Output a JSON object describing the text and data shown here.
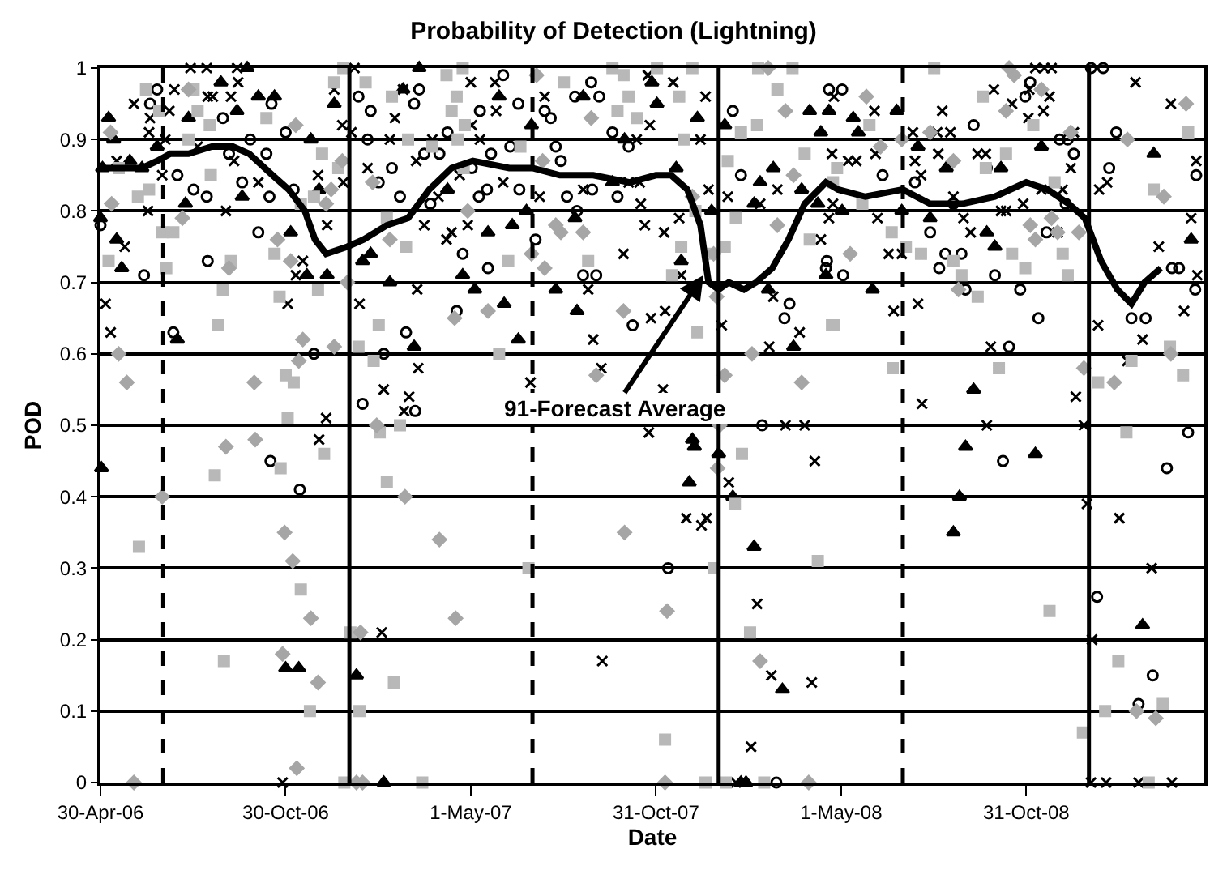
{
  "chart_data": {
    "type": "scatter",
    "title": "Probability of Detection (Lightning)",
    "xlabel": "Date",
    "ylabel": "POD",
    "xlim": [
      "2006-04-30",
      "2009-04-25"
    ],
    "ylim": [
      0,
      1
    ],
    "xticks": [
      {
        "value": "2006-04-30",
        "label": "30-Apr-06"
      },
      {
        "value": "2006-10-30",
        "label": "30-Oct-06"
      },
      {
        "value": "2007-05-01",
        "label": "1-May-07"
      },
      {
        "value": "2007-10-31",
        "label": "31-Oct-07"
      },
      {
        "value": "2008-05-01",
        "label": "1-May-08"
      },
      {
        "value": "2008-10-31",
        "label": "31-Oct-08"
      }
    ],
    "yticks": [
      0,
      0.1,
      0.2,
      0.3,
      0.4,
      0.5,
      0.6,
      0.7,
      0.8,
      0.9,
      1
    ],
    "grid": "y",
    "ref_lines": [
      {
        "axis": "x",
        "value": "2006-07-01",
        "line_style": "dashed",
        "color": "#000000"
      },
      {
        "axis": "x",
        "value": "2007-01-01",
        "line_style": "solid",
        "color": "#000000"
      },
      {
        "axis": "x",
        "value": "2007-07-01",
        "line_style": "dashed",
        "color": "#000000"
      },
      {
        "axis": "x",
        "value": "2008-01-01",
        "line_style": "solid",
        "color": "#000000"
      },
      {
        "axis": "x",
        "value": "2008-07-01",
        "line_style": "dashed",
        "color": "#000000"
      },
      {
        "axis": "x",
        "value": "2009-01-01",
        "line_style": "solid",
        "color": "#000000"
      }
    ],
    "annotations": [
      {
        "text": "91-Forecast Average",
        "x": "2007-12-17",
        "y": 0.71
      }
    ],
    "series": [
      {
        "marker": "triangle",
        "color": "#000000",
        "x": [
          "2006-05-08",
          "2006-05-13",
          "2006-05-02",
          "2006-05-29",
          "2006-06-10",
          "2006-06-25",
          "2006-04-30",
          "2006-05-16",
          "2006-05-21",
          "2006-07-15",
          "2006-07-26",
          "2006-08-27",
          "2006-09-12",
          "2006-09-22",
          "2006-10-03",
          "2006-10-19",
          "2006-09-17",
          "2006-07-23",
          "2006-11-04",
          "2006-11-20",
          "2006-12-10",
          "2006-11-24",
          "2006-12-17",
          "2006-12-02",
          "2007-01-14",
          "2007-01-22",
          "2007-02-10",
          "2007-02-23",
          "2007-03-06",
          "2007-03-11",
          "2007-04-08",
          "2007-04-23",
          "2007-05-29",
          "2007-06-30",
          "2007-06-25",
          "2007-05-18",
          "2007-06-11",
          "2007-05-05",
          "2007-06-03",
          "2007-07-24",
          "2007-08-14",
          "2007-06-17",
          "2007-08-12",
          "2007-08-20",
          "2007-09-18",
          "2007-09-30",
          "2007-10-27",
          "2007-11-01",
          "2007-11-20",
          "2007-12-11",
          "2007-12-25",
          "2007-11-25",
          "2008-01-07",
          "2008-02-11",
          "2008-02-05",
          "2008-02-24",
          "2008-03-23",
          "2008-03-31",
          "2008-04-11",
          "2008-04-08",
          "2007-12-06",
          "2008-02-19",
          "2008-03-15",
          "2008-04-19",
          "2008-05-13",
          "2008-05-18",
          "2008-06-25",
          "2008-06-30",
          "2008-07-16",
          "2008-05-02",
          "2008-06-01",
          "2008-04-16",
          "2008-07-28",
          "2008-08-13",
          "2008-09-22",
          "2008-09-30",
          "2008-10-06",
          "2008-11-15",
          "2009-03-06",
          "2009-04-12",
          "2008-09-09",
          "2008-09-01",
          "2008-11-09",
          "2008-08-26",
          "2008-08-20",
          "2009-02-23",
          "2006-05-01",
          "2006-10-30",
          "2006-11-12",
          "2007-01-08",
          "2007-02-04",
          "2007-12-08",
          "2008-01-01",
          "2007-12-03",
          "2008-01-15",
          "2008-02-05",
          "2008-03-04",
          "2008-01-23",
          "2008-01-28"
        ],
        "values": [
          0.93,
          0.9,
          0.86,
          0.87,
          0.86,
          0.89,
          0.79,
          0.76,
          0.72,
          0.62,
          0.93,
          0.98,
          0.94,
          1.0,
          0.96,
          0.96,
          0.82,
          0.81,
          0.77,
          0.71,
          0.71,
          0.9,
          0.95,
          0.83,
          0.73,
          0.74,
          0.7,
          0.97,
          0.61,
          1.0,
          0.83,
          0.71,
          0.96,
          0.92,
          0.8,
          0.77,
          0.78,
          0.69,
          0.67,
          0.69,
          0.66,
          0.62,
          0.79,
          0.96,
          0.84,
          0.9,
          0.98,
          0.95,
          0.86,
          0.93,
          0.8,
          0.73,
          0.92,
          0.84,
          0.81,
          0.86,
          0.83,
          0.94,
          0.91,
          0.81,
          0.48,
          0.69,
          0.61,
          0.94,
          0.93,
          0.91,
          0.94,
          0.8,
          0.89,
          0.8,
          0.69,
          0.71,
          0.79,
          0.86,
          0.77,
          0.75,
          0.86,
          0.89,
          0.88,
          0.76,
          0.55,
          0.47,
          0.46,
          0.4,
          0.35,
          0.22,
          0.44,
          0.16,
          0.16,
          0.15,
          0,
          0.47,
          0.46,
          0.42,
          0.4,
          0.33,
          0.13,
          0,
          0
        ]
      },
      {
        "marker": "circle",
        "color": "#000000",
        "x": [
          "2006-06-25",
          "2006-06-18",
          "2006-10-16",
          "2006-08-29",
          "2006-09-25",
          "2006-10-30",
          "2006-07-15",
          "2006-07-31",
          "2006-08-13",
          "2006-09-04",
          "2006-09-17",
          "2006-10-11",
          "2006-10-14",
          "2006-11-07",
          "2006-10-03",
          "2006-04-30",
          "2006-06-12",
          "2006-08-14",
          "2006-07-11",
          "2006-11-27",
          "2007-01-10",
          "2007-01-22",
          "2007-01-19",
          "2007-02-12",
          "2007-01-30",
          "2007-02-20",
          "2007-03-11",
          "2007-03-06",
          "2007-03-16",
          "2007-04-08",
          "2007-03-31",
          "2007-03-22",
          "2007-04-23",
          "2007-04-17",
          "2007-02-04",
          "2007-02-26",
          "2007-03-07",
          "2007-01-14",
          "2006-10-15",
          "2006-11-13",
          "2007-06-02",
          "2007-08-28",
          "2007-09-05",
          "2007-08-12",
          "2007-05-10",
          "2007-06-17",
          "2007-07-13",
          "2007-07-19",
          "2007-07-24",
          "2007-09-18",
          "2007-10-04",
          "2007-05-21",
          "2007-06-09",
          "2007-05-02",
          "2007-05-17",
          "2007-05-09",
          "2007-06-18",
          "2007-07-29",
          "2007-08-04",
          "2007-09-23",
          "2007-08-29",
          "2007-07-04",
          "2007-05-18",
          "2007-08-20",
          "2007-09-02",
          "2007-08-14",
          "2007-10-08",
          "2008-01-15",
          "2008-01-23",
          "2008-04-16",
          "2008-03-11",
          "2008-03-06",
          "2008-02-13",
          "2007-11-12",
          "2008-02-27",
          "2008-04-19",
          "2008-05-02",
          "2008-06-11",
          "2008-07-13",
          "2008-05-03",
          "2008-04-17",
          "2008-07-28",
          "2008-08-12",
          "2008-08-28",
          "2008-08-06",
          "2008-08-20",
          "2008-09-09",
          "2008-09-22",
          "2008-11-04",
          "2008-10-30",
          "2008-09-30",
          "2008-09-01",
          "2008-10-25",
          "2008-11-20",
          "2008-12-03",
          "2008-12-11",
          "2008-12-17",
          "2008-12-09",
          "2009-01-03",
          "2009-01-15",
          "2009-01-28",
          "2009-01-21",
          "2009-03-31",
          "2009-03-24",
          "2009-04-17",
          "2009-04-16",
          "2009-02-12",
          "2009-02-26",
          "2008-10-14",
          "2008-11-12",
          "2009-04-09",
          "2008-10-08",
          "2009-03-19",
          "2009-01-09",
          "2009-03-05",
          "2009-02-19"
        ],
        "values": [
          0.97,
          0.95,
          0.95,
          0.93,
          0.9,
          0.91,
          0.85,
          0.83,
          0.82,
          0.88,
          0.84,
          0.88,
          0.82,
          0.83,
          0.77,
          0.78,
          0.71,
          0.73,
          0.63,
          0.6,
          0.96,
          0.94,
          0.9,
          0.86,
          0.84,
          0.82,
          0.97,
          0.95,
          0.88,
          0.91,
          0.88,
          0.81,
          0.74,
          0.66,
          0.6,
          0.63,
          0.52,
          0.53,
          0.45,
          0.41,
          0.99,
          0.98,
          0.96,
          0.96,
          0.94,
          0.95,
          0.94,
          0.93,
          0.89,
          0.91,
          0.89,
          0.88,
          0.89,
          0.86,
          0.83,
          0.82,
          0.83,
          0.87,
          0.82,
          0.82,
          0.83,
          0.76,
          0.72,
          0.71,
          0.71,
          0.8,
          0.64,
          0.94,
          0.85,
          0.72,
          0.67,
          0.65,
          0.5,
          0.3,
          0,
          0.97,
          0.97,
          0.85,
          0.84,
          0.71,
          0.73,
          0.77,
          0.74,
          0.74,
          0.72,
          0.81,
          0.92,
          0.86,
          0.98,
          0.96,
          0.71,
          0.69,
          0.69,
          0.77,
          0.9,
          0.9,
          0.88,
          0.81,
          1.0,
          1.0,
          0.91,
          0.86,
          0.72,
          0.72,
          0.85,
          0.69,
          0.65,
          0.65,
          0.61,
          0.65,
          0.49,
          0.45,
          0.44,
          0.26,
          0.15,
          0.11
        ]
      },
      {
        "marker": "cross",
        "color": "#000000",
        "x": [
          "2006-06-02",
          "2006-06-18",
          "2006-07-07",
          "2006-07-12",
          "2006-07-28",
          "2006-08-13",
          "2006-08-14",
          "2006-09-12",
          "2006-09-13",
          "2006-09-06",
          "2006-08-19",
          "2006-08-04",
          "2006-07-03",
          "2006-06-17",
          "2006-05-16",
          "2006-06-30",
          "2006-06-16",
          "2006-05-24",
          "2006-09-01",
          "2006-09-09",
          "2006-10-03",
          "2006-12-01",
          "2006-12-26",
          "2006-12-10",
          "2006-12-17",
          "2006-12-25",
          "2007-01-03",
          "2007-01-06",
          "2006-11-16",
          "2006-11-09",
          "2006-05-05",
          "2006-05-10",
          "2006-11-01",
          "2006-12-09",
          "2006-12-02",
          "2007-01-19",
          "2007-01-11",
          "2007-02-23",
          "2007-02-15",
          "2007-02-10",
          "2007-03-08",
          "2007-03-24",
          "2007-03-16",
          "2007-03-30",
          "2007-04-12",
          "2007-04-07",
          "2007-04-20",
          "2007-03-09",
          "2007-03-10",
          "2007-02-04",
          "2007-02-24",
          "2007-03-01",
          "2006-10-27",
          "2007-02-02",
          "2007-05-01",
          "2007-05-25",
          "2007-05-26",
          "2007-05-02",
          "2007-05-10",
          "2007-06-02",
          "2007-04-28",
          "2007-07-08",
          "2007-07-13",
          "2007-08-20",
          "2007-10-04",
          "2007-10-15",
          "2007-10-23",
          "2007-11-17",
          "2007-10-25",
          "2007-10-12",
          "2007-12-19",
          "2007-12-14",
          "2007-12-22",
          "2008-01-10",
          "2008-04-22",
          "2008-04-23",
          "2008-04-11",
          "2008-02-28",
          "2008-02-11",
          "2007-10-16",
          "2007-10-20",
          "2007-11-08",
          "2007-11-23",
          "2007-09-29",
          "2007-11-25",
          "2008-02-24",
          "2008-03-21",
          "2008-02-20",
          "2008-03-26",
          "2008-03-07",
          "2008-01-04",
          "2007-08-25",
          "2007-11-09",
          "2007-10-26",
          "2007-08-30",
          "2007-09-07",
          "2007-06-29",
          "2007-11-07",
          "2007-10-24",
          "2008-04-05",
          "2008-01-11",
          "2007-11-30",
          "2007-12-15",
          "2007-12-20",
          "2008-02-08",
          "2007-09-08",
          "2008-02-22",
          "2008-04-02",
          "2008-02-02",
          "2008-01-18",
          "2008-04-24",
          "2008-06-03",
          "2008-05-08",
          "2008-05-16",
          "2008-06-04",
          "2008-04-19",
          "2008-06-06",
          "2008-07-11",
          "2008-08-09",
          "2008-08-04",
          "2008-08-17",
          "2008-08-05",
          "2008-07-13",
          "2008-07-19",
          "2008-08-20",
          "2008-08-30",
          "2008-09-06",
          "2008-09-13",
          "2008-09-21",
          "2008-10-06",
          "2008-10-11",
          "2008-10-28",
          "2008-09-29",
          "2008-10-17",
          "2008-11-02",
          "2008-11-17",
          "2008-11-23",
          "2008-11-03",
          "2008-11-09",
          "2008-11-25",
          "2008-11-18",
          "2008-12-01",
          "2008-12-06",
          "2008-12-14",
          "2008-12-17",
          "2009-01-11",
          "2009-01-19",
          "2008-11-15",
          "2008-06-17",
          "2008-06-30",
          "2008-06-22",
          "2008-07-16",
          "2008-09-26",
          "2009-01-10",
          "2009-02-23",
          "2009-04-05",
          "2009-02-08",
          "2009-02-16",
          "2009-03-23",
          "2009-04-17",
          "2009-04-12",
          "2009-03-11",
          "2009-04-18",
          "2008-07-20",
          "2008-09-22",
          "2008-12-19",
          "2008-12-27",
          "2008-12-30",
          "2009-01-31",
          "2009-03-04",
          "2009-01-04",
          "2009-01-03",
          "2009-01-18",
          "2009-02-19",
          "2009-03-24"
        ],
        "values": [
          0.95,
          0.93,
          0.94,
          0.97,
          1.0,
          1.0,
          0.96,
          1.0,
          0.98,
          0.96,
          0.96,
          0.89,
          0.9,
          0.91,
          0.87,
          0.85,
          0.8,
          0.75,
          0.8,
          0.87,
          0.84,
          0.85,
          0.84,
          0.78,
          0.97,
          0.92,
          0.91,
          1.0,
          0.73,
          0.71,
          0.67,
          0.63,
          0.67,
          0.51,
          0.48,
          0.86,
          0.67,
          0.97,
          0.93,
          0.9,
          0.87,
          0.9,
          0.78,
          0.82,
          0.77,
          0.76,
          0.85,
          0.69,
          0.58,
          0.55,
          0.52,
          0.54,
          0,
          0.21,
          0.98,
          0.98,
          0.94,
          0.92,
          0.9,
          0.84,
          0.78,
          0.82,
          0.96,
          0.83,
          0.84,
          0.84,
          0.99,
          0.98,
          0.92,
          0.9,
          0.96,
          0.9,
          0.83,
          0.82,
          0.88,
          0.81,
          0.76,
          0.83,
          0.81,
          0.81,
          0.78,
          0.77,
          0.79,
          0.74,
          0.71,
          0.68,
          0.63,
          0.61,
          0.5,
          0.5,
          0.64,
          0.69,
          0.66,
          0.65,
          0.62,
          0.58,
          0.56,
          0.55,
          0.49,
          0.45,
          0.42,
          0.37,
          0.36,
          0.37,
          0.25,
          0.17,
          0.15,
          0.14,
          0.05,
          0,
          0.96,
          0.94,
          0.87,
          0.87,
          0.88,
          0.79,
          0.79,
          0.91,
          0.94,
          0.91,
          0.91,
          0.88,
          0.87,
          0.85,
          0.82,
          0.79,
          0.77,
          0.88,
          0.88,
          0.8,
          0.8,
          0.81,
          0.97,
          0.95,
          0.93,
          0.94,
          0.96,
          0.97,
          1.0,
          1.0,
          1.0,
          0.77,
          0.83,
          0.86,
          0.91,
          0.83,
          0.84,
          0.83,
          0.74,
          0.74,
          0.66,
          0.67,
          0.61,
          0.64,
          0.62,
          0.66,
          0.59,
          0.98,
          0.95,
          0.87,
          0.79,
          0.75,
          0.71,
          0.53,
          0.5,
          0.54,
          0.5,
          0.39,
          0.37,
          0.3,
          0.2,
          0,
          0,
          0,
          0
        ]
      },
      {
        "marker": "square",
        "color": "#b8b8b8",
        "x": [
          "2006-06-14",
          "2006-06-27",
          "2006-07-26",
          "2006-08-16",
          "2006-08-04",
          "2006-07-31",
          "2006-10-11",
          "2006-06-17",
          "2006-06-06",
          "2006-05-18",
          "2006-08-17",
          "2006-05-08",
          "2006-06-30",
          "2006-07-11",
          "2006-07-04",
          "2006-09-06",
          "2006-10-19",
          "2006-11-27",
          "2006-11-14",
          "2006-12-05",
          "2006-12-21",
          "2006-12-17",
          "2006-12-26",
          "2007-01-17",
          "2006-12-01",
          "2006-08-29",
          "2006-08-24",
          "2006-10-24",
          "2006-10-30",
          "2006-11-07",
          "2006-11-01",
          "2007-01-10",
          "2007-01-25",
          "2007-01-30",
          "2007-01-31",
          "2007-02-12",
          "2007-02-28",
          "2007-02-26",
          "2007-02-07",
          "2007-02-20",
          "2007-03-24",
          "2007-04-07",
          "2007-04-17",
          "2007-04-12",
          "2007-04-18",
          "2007-04-24",
          "2006-08-21",
          "2006-10-25",
          "2006-12-07",
          "2006-06-07",
          "2006-08-30",
          "2006-11-14",
          "2006-11-23",
          "2007-01-02",
          "2007-01-11",
          "2006-12-27",
          "2007-02-07",
          "2007-02-14",
          "2007-03-14",
          "2007-04-23",
          "2007-04-25",
          "2007-06-19",
          "2007-08-01",
          "2007-09-18",
          "2007-09-29",
          "2007-10-04",
          "2007-09-23",
          "2007-10-12",
          "2007-11-01",
          "2007-12-06",
          "2007-11-23",
          "2007-11-28",
          "2008-01-10",
          "2008-01-07",
          "2008-01-18",
          "2008-01-23",
          "2008-02-08",
          "2008-02-09",
          "2008-02-28",
          "2008-03-14",
          "2008-03-26",
          "2008-03-31",
          "2008-04-22",
          "2007-12-22",
          "2007-12-09",
          "2007-11-16",
          "2007-11-25",
          "2007-06-07",
          "2007-08-25",
          "2007-05-29",
          "2007-12-11",
          "2008-01-24",
          "2008-01-17",
          "2007-06-27",
          "2007-12-27",
          "2008-04-08",
          "2008-02-01",
          "2007-11-09",
          "2007-12-19",
          "2008-01-08",
          "2008-02-15",
          "2008-08-01",
          "2008-09-18",
          "2008-11-07",
          "2008-10-11",
          "2008-09-21",
          "2008-05-29",
          "2008-04-27",
          "2008-04-23",
          "2008-05-22",
          "2008-06-20",
          "2008-07-04",
          "2008-07-19",
          "2008-08-20",
          "2008-08-28",
          "2008-09-13",
          "2008-10-17",
          "2008-10-30",
          "2008-12-06",
          "2008-12-11",
          "2008-11-28",
          "2009-03-06",
          "2009-04-09",
          "2008-04-24",
          "2008-06-21",
          "2008-10-04",
          "2009-01-10",
          "2009-02-12",
          "2009-03-22",
          "2009-04-04",
          "2009-02-07",
          "2008-11-23",
          "2009-01-30",
          "2009-01-17",
          "2008-12-26",
          "2009-03-15",
          "2009-03-01"
        ],
        "values": [
          0.97,
          0.94,
          0.9,
          0.92,
          0.94,
          0.97,
          0.93,
          0.83,
          0.82,
          0.86,
          0.85,
          0.73,
          0.77,
          0.77,
          0.72,
          0.73,
          0.74,
          0.82,
          0.81,
          0.88,
          0.86,
          0.98,
          1.0,
          0.98,
          0.69,
          0.69,
          0.64,
          0.68,
          0.57,
          0.56,
          0.51,
          0.61,
          0.59,
          0.64,
          0.49,
          0.96,
          0.9,
          0.75,
          0.79,
          0.5,
          0.89,
          0.99,
          0.96,
          0.94,
          0.9,
          0.86,
          0.43,
          0.44,
          0.46,
          0.33,
          0.17,
          0.27,
          0.1,
          0.21,
          0.1,
          0,
          0.42,
          0.14,
          0,
          1.0,
          0.92,
          0.89,
          0.98,
          1.0,
          0.99,
          0.96,
          0.94,
          0.93,
          1.0,
          1.0,
          0.96,
          0.9,
          0.87,
          0.75,
          0.79,
          0.91,
          0.92,
          1.0,
          0.97,
          1.0,
          0.88,
          0.76,
          0.64,
          0.74,
          0.8,
          0.71,
          0.75,
          0.73,
          0.73,
          0.6,
          0.63,
          0.46,
          0.39,
          0.3,
          0.3,
          0.31,
          0.21,
          0.06,
          0,
          0,
          0,
          1.0,
          0.96,
          0.92,
          0.88,
          0.86,
          0.92,
          0.86,
          0.84,
          0.81,
          0.77,
          0.75,
          0.74,
          0.73,
          0.71,
          0.68,
          0.74,
          0.72,
          0.74,
          0.71,
          0.84,
          0.83,
          0.91,
          0.64,
          0.58,
          0.58,
          0.56,
          0.59,
          0.61,
          0.57,
          0.49,
          0.24,
          0.17,
          0.1,
          0.07,
          0.11,
          0
        ]
      },
      {
        "marker": "diamond",
        "color": "#a6a6a6",
        "x": [
          "2006-05-10",
          "2006-05-11",
          "2006-07-20",
          "2006-07-26",
          "2006-11-09",
          "2006-12-25",
          "2006-12-14",
          "2006-12-09",
          "2006-10-22",
          "2006-11-04",
          "2006-09-04",
          "2006-12-30",
          "2007-01-24",
          "2007-02-10",
          "2007-04-28",
          "2006-05-18",
          "2006-05-26",
          "2006-09-29",
          "2006-11-12",
          "2006-12-17",
          "2006-11-16",
          "2007-01-28",
          "2007-04-15",
          "2006-09-01",
          "2006-09-30",
          "2006-06-30",
          "2006-06-02",
          "2006-10-29",
          "2006-11-06",
          "2006-11-24",
          "2006-10-27",
          "2006-12-01",
          "2006-11-10",
          "2007-01-12",
          "2007-02-25",
          "2007-03-31",
          "2007-04-16",
          "2007-01-08",
          "2007-01-14",
          "2007-07-05",
          "2007-08-28",
          "2007-07-11",
          "2007-07-24",
          "2007-07-29",
          "2007-08-20",
          "2007-06-30",
          "2007-07-13",
          "2007-12-06",
          "2007-12-27",
          "2007-12-30",
          "2008-02-19",
          "2008-03-07",
          "2008-03-15",
          "2008-02-28",
          "2007-05-18",
          "2007-09-29",
          "2007-09-02",
          "2008-01-07",
          "2008-02-03",
          "2008-03-23",
          "2008-01-02",
          "2007-12-31",
          "2007-09-30",
          "2007-11-11",
          "2008-02-11",
          "2007-11-09",
          "2008-03-30",
          "2008-10-14",
          "2008-10-19",
          "2008-10-11",
          "2008-11-15",
          "2008-05-26",
          "2008-06-09",
          "2008-06-30",
          "2008-07-28",
          "2008-08-20",
          "2008-11-25",
          "2008-12-01",
          "2008-11-04",
          "2008-11-09",
          "2008-12-22",
          "2008-05-10",
          "2008-08-25",
          "2008-12-14",
          "2009-03-16",
          "2009-04-07",
          "2009-02-08",
          "2008-12-27",
          "2009-01-26",
          "2009-03-23",
          "2009-02-17",
          "2009-03-08"
        ],
        "values": [
          0.91,
          0.81,
          0.79,
          0.97,
          0.92,
          0.87,
          0.83,
          0.81,
          0.76,
          0.73,
          0.72,
          0.7,
          0.84,
          0.76,
          0.8,
          0.6,
          0.56,
          0.56,
          0.59,
          0.61,
          0.62,
          0.5,
          0.65,
          0.47,
          0.48,
          0.4,
          0,
          0.35,
          0.31,
          0.23,
          0.18,
          0.14,
          0.02,
          0.21,
          0.4,
          0.34,
          0.23,
          0,
          0,
          0.99,
          0.93,
          0.87,
          0.78,
          0.77,
          0.77,
          0.74,
          0.72,
          0.82,
          0.74,
          0.68,
          1.0,
          0.94,
          0.85,
          0.78,
          0.66,
          0.66,
          0.57,
          0.57,
          0.6,
          0.56,
          0.5,
          0.44,
          0.35,
          0.24,
          0.17,
          0,
          0,
          1.0,
          0.99,
          0.94,
          0.97,
          0.96,
          0.89,
          0.9,
          0.91,
          0.87,
          0.79,
          0.77,
          0.78,
          0.76,
          0.77,
          0.74,
          0.69,
          0.91,
          0.82,
          0.95,
          0.9,
          0.58,
          0.56,
          0.6,
          0.1,
          0.09
        ]
      },
      {
        "type": "line",
        "marker": "none",
        "line_style": "solid",
        "color": "#000000",
        "x": [
          "2006-05-01",
          "2006-06-10",
          "2006-06-25",
          "2006-07-08",
          "2006-07-26",
          "2006-08-18",
          "2006-09-08",
          "2006-09-24",
          "2006-10-17",
          "2006-11-02",
          "2006-11-18",
          "2006-11-28",
          "2006-12-09",
          "2006-12-30",
          "2007-01-15",
          "2007-02-07",
          "2007-02-28",
          "2007-03-21",
          "2007-04-12",
          "2007-05-03",
          "2007-06-08",
          "2007-07-01",
          "2007-07-28",
          "2007-08-30",
          "2007-10-05",
          "2007-10-31",
          "2007-11-15",
          "2007-12-01",
          "2007-12-14",
          "2007-12-22",
          "2008-01-01",
          "2008-01-11",
          "2008-01-26",
          "2008-02-07",
          "2008-02-23",
          "2008-03-10",
          "2008-03-26",
          "2008-04-16",
          "2008-04-28",
          "2008-05-25",
          "2008-07-01",
          "2008-07-28",
          "2008-08-29",
          "2008-09-30",
          "2008-10-31",
          "2008-11-21",
          "2008-12-12",
          "2008-12-28",
          "2009-01-13",
          "2009-01-29",
          "2009-02-12",
          "2009-02-25",
          "2009-03-13"
        ],
        "values": [
          0.86,
          0.86,
          0.87,
          0.88,
          0.88,
          0.89,
          0.89,
          0.88,
          0.85,
          0.83,
          0.8,
          0.76,
          0.74,
          0.75,
          0.76,
          0.78,
          0.79,
          0.83,
          0.86,
          0.87,
          0.86,
          0.86,
          0.85,
          0.85,
          0.84,
          0.85,
          0.85,
          0.83,
          0.78,
          0.7,
          0.69,
          0.7,
          0.69,
          0.7,
          0.72,
          0.76,
          0.81,
          0.84,
          0.83,
          0.82,
          0.83,
          0.81,
          0.81,
          0.82,
          0.84,
          0.83,
          0.81,
          0.79,
          0.73,
          0.69,
          0.67,
          0.7,
          0.72
        ]
      }
    ]
  }
}
